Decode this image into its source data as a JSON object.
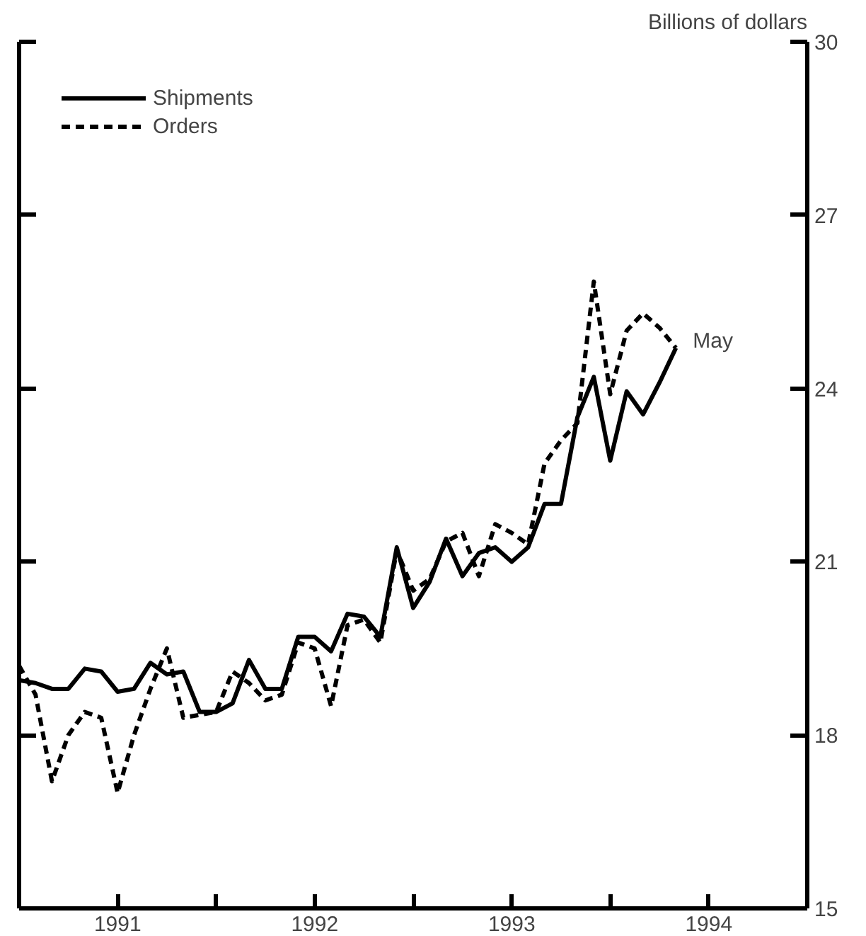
{
  "chart_data": {
    "type": "line",
    "ylabel": "Billions of dollars",
    "x": [
      "1991-01",
      "1991-02",
      "1991-03",
      "1991-04",
      "1991-05",
      "1991-06",
      "1991-07",
      "1991-08",
      "1991-09",
      "1991-10",
      "1991-11",
      "1991-12",
      "1992-01",
      "1992-02",
      "1992-03",
      "1992-04",
      "1992-05",
      "1992-06",
      "1992-07",
      "1992-08",
      "1992-09",
      "1992-10",
      "1992-11",
      "1992-12",
      "1993-01",
      "1993-02",
      "1993-03",
      "1993-04",
      "1993-05",
      "1993-06",
      "1993-07",
      "1993-08",
      "1993-09",
      "1993-10",
      "1993-11",
      "1993-12",
      "1994-01",
      "1994-02",
      "1994-03",
      "1994-04",
      "1994-05"
    ],
    "series": [
      {
        "name": "Shipments",
        "color": "#000000",
        "line_style": "solid",
        "values": [
          18.95,
          18.9,
          18.8,
          18.8,
          19.15,
          19.1,
          18.75,
          18.8,
          19.25,
          19.05,
          19.1,
          18.4,
          18.4,
          18.55,
          19.3,
          18.8,
          18.8,
          19.7,
          19.7,
          19.45,
          20.1,
          20.05,
          19.7,
          21.25,
          20.2,
          20.65,
          21.4,
          20.75,
          21.15,
          21.25,
          21.0,
          21.25,
          22.0,
          22.0,
          23.5,
          24.2,
          22.75,
          23.95,
          23.55,
          24.1,
          24.7
        ]
      },
      {
        "name": "Orders",
        "color": "#000000",
        "line_style": "dashed",
        "values": [
          19.2,
          18.7,
          17.2,
          18.0,
          18.4,
          18.3,
          17.0,
          18.0,
          18.8,
          19.5,
          18.3,
          18.35,
          18.4,
          19.1,
          18.9,
          18.6,
          18.7,
          19.6,
          19.5,
          18.5,
          19.9,
          20.0,
          19.6,
          21.2,
          20.5,
          20.7,
          21.35,
          21.5,
          20.75,
          21.65,
          21.5,
          21.3,
          22.7,
          23.1,
          23.4,
          25.85,
          23.9,
          25.0,
          25.3,
          25.05,
          24.7
        ]
      }
    ],
    "xlim": [
      "1991-01",
      "1995-01"
    ],
    "xticks": [
      {
        "value": "1991-07",
        "label": "1991"
      },
      {
        "value": "1992-01",
        "label": null
      },
      {
        "value": "1992-07",
        "label": "1992"
      },
      {
        "value": "1993-01",
        "label": null
      },
      {
        "value": "1993-07",
        "label": "1993"
      },
      {
        "value": "1994-01",
        "label": null
      },
      {
        "value": "1994-07",
        "label": "1994"
      }
    ],
    "ylim": [
      15,
      30
    ],
    "yticks": [
      15,
      18,
      21,
      24,
      27,
      30
    ],
    "annotations": [
      {
        "text": "May",
        "x": "1994-05",
        "y": 24.7
      }
    ],
    "legend": "top left",
    "grid": false
  }
}
